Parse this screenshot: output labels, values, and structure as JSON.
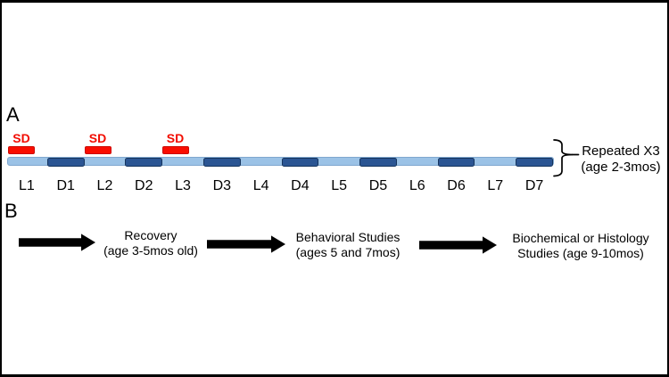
{
  "figure": {
    "panel_a": {
      "label": "A",
      "sd_label": "SD",
      "timeline_segments": [
        {
          "label": "L1",
          "type": "light",
          "sd": true
        },
        {
          "label": "D1",
          "type": "dark",
          "sd": false
        },
        {
          "label": "L2",
          "type": "light",
          "sd": true
        },
        {
          "label": "D2",
          "type": "dark",
          "sd": false
        },
        {
          "label": "L3",
          "type": "light",
          "sd": true
        },
        {
          "label": "D3",
          "type": "dark",
          "sd": false
        },
        {
          "label": "L4",
          "type": "light",
          "sd": false
        },
        {
          "label": "D4",
          "type": "dark",
          "sd": false
        },
        {
          "label": "L5",
          "type": "light",
          "sd": false
        },
        {
          "label": "D5",
          "type": "dark",
          "sd": false
        },
        {
          "label": "L6",
          "type": "light",
          "sd": false
        },
        {
          "label": "D6",
          "type": "dark",
          "sd": false
        },
        {
          "label": "L7",
          "type": "light",
          "sd": false
        },
        {
          "label": "D7",
          "type": "dark",
          "sd": false
        }
      ],
      "brace_note": {
        "line1": "Repeated X3",
        "line2": "(age 2-3mos)"
      }
    },
    "panel_b": {
      "label": "B",
      "steps": [
        {
          "line1": "Recovery",
          "line2": "(age 3-5mos old)"
        },
        {
          "line1": "Behavioral Studies",
          "line2": "(ages 5 and 7mos)"
        },
        {
          "line1": "Biochemical or Histology",
          "line2": "Studies (age 9-10mos)"
        }
      ]
    },
    "colors": {
      "background": "#FFFFFF",
      "frame_border": "#000000",
      "light_segment_fill": "#9BC2E6",
      "light_segment_border": "#7FA7CF",
      "dark_segment_fill": "#2B5593",
      "dark_segment_border": "#16355E",
      "sd_red_fill": "#F90D00",
      "sd_red_border": "#CC0A00",
      "sd_text": "#F20C00",
      "arrow": "#000000",
      "text": "#000000"
    }
  }
}
